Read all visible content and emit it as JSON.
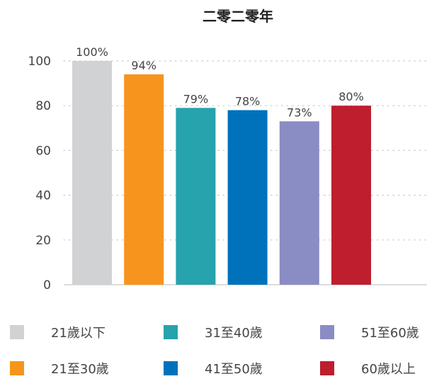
{
  "chart_data": {
    "type": "bar",
    "title": "二零二零年",
    "xlabel": "",
    "ylabel": "",
    "ylim": [
      0,
      100
    ],
    "yticks": [
      0,
      20,
      40,
      60,
      80,
      100
    ],
    "grid": "dotted horizontal",
    "legend_position": "bottom",
    "categories": [
      "21歲以下",
      "21至30歲",
      "31至40歲",
      "41至50歲",
      "51至60歲",
      "60歲以上"
    ],
    "values": [
      100,
      94,
      79,
      78,
      73,
      80
    ],
    "data_labels": [
      "100%",
      "94%",
      "79%",
      "78%",
      "73%",
      "80%"
    ],
    "colors": [
      "#d1d2d4",
      "#f7941d",
      "#26a3ad",
      "#0072bc",
      "#8a8cc4",
      "#be1e2d"
    ]
  }
}
